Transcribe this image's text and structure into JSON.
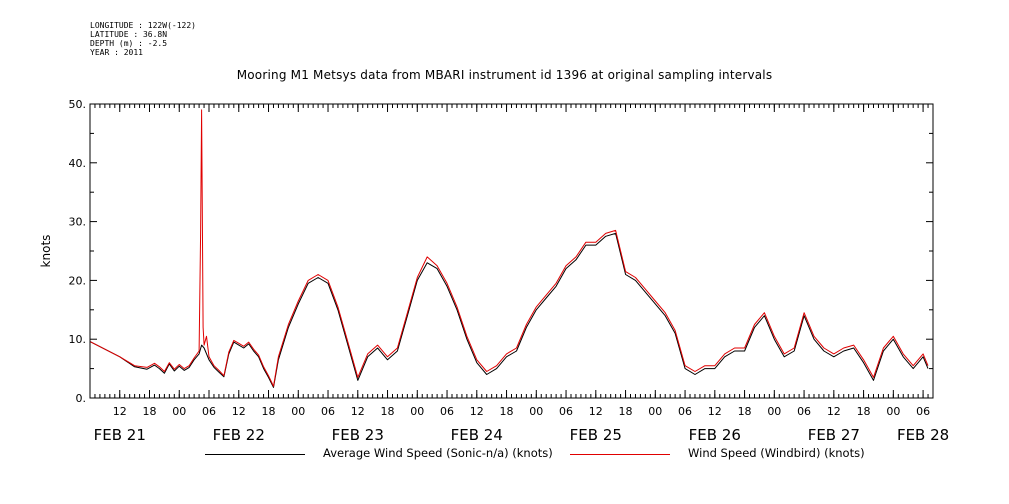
{
  "meta": {
    "longitude": "LONGITUDE : 122W(-122)",
    "latitude": "LATITUDE : 36.8N",
    "depth": "DEPTH (m) : -2.5",
    "year": "YEAR : 2011"
  },
  "chart_data": {
    "type": "line",
    "title": "Mooring M1 Metsys data from MBARI instrument id 1396 at original sampling intervals",
    "ylabel": "knots",
    "xlabel": "",
    "ylim": [
      0,
      50
    ],
    "yticks": [
      "0.",
      "10.",
      "20.",
      "30.",
      "40.",
      "50."
    ],
    "ytick_values": [
      0,
      10,
      20,
      30,
      40,
      50
    ],
    "xlim_hours": [
      6,
      174
    ],
    "hour_ticks": [
      {
        "h": 12,
        "label": "12"
      },
      {
        "h": 18,
        "label": "18"
      },
      {
        "h": 24,
        "label": "00"
      },
      {
        "h": 30,
        "label": "06"
      },
      {
        "h": 36,
        "label": "12"
      },
      {
        "h": 42,
        "label": "18"
      },
      {
        "h": 48,
        "label": "00"
      },
      {
        "h": 54,
        "label": "06"
      },
      {
        "h": 60,
        "label": "12"
      },
      {
        "h": 66,
        "label": "18"
      },
      {
        "h": 72,
        "label": "00"
      },
      {
        "h": 78,
        "label": "06"
      },
      {
        "h": 84,
        "label": "12"
      },
      {
        "h": 90,
        "label": "18"
      },
      {
        "h": 96,
        "label": "00"
      },
      {
        "h": 102,
        "label": "06"
      },
      {
        "h": 108,
        "label": "12"
      },
      {
        "h": 114,
        "label": "18"
      },
      {
        "h": 120,
        "label": "00"
      },
      {
        "h": 126,
        "label": "06"
      },
      {
        "h": 132,
        "label": "12"
      },
      {
        "h": 138,
        "label": "18"
      },
      {
        "h": 144,
        "label": "00"
      },
      {
        "h": 150,
        "label": "06"
      },
      {
        "h": 156,
        "label": "12"
      },
      {
        "h": 162,
        "label": "18"
      },
      {
        "h": 168,
        "label": "00"
      },
      {
        "h": 174,
        "label": "06"
      }
    ],
    "date_labels": [
      {
        "h": 12,
        "label": "FEB 21"
      },
      {
        "h": 36,
        "label": "FEB 22"
      },
      {
        "h": 60,
        "label": "FEB 23"
      },
      {
        "h": 84,
        "label": "FEB 24"
      },
      {
        "h": 108,
        "label": "FEB 25"
      },
      {
        "h": 132,
        "label": "FEB 26"
      },
      {
        "h": 156,
        "label": "FEB 27"
      },
      {
        "h": 174,
        "label": "FEB 28"
      }
    ],
    "series": [
      {
        "name": "Average Wind Speed (Sonic-n/a) (knots)",
        "color": "#000000",
        "x": [
          6,
          12,
          15,
          17.5,
          19,
          20,
          21,
          22,
          23,
          24,
          25,
          26,
          27,
          28,
          28.5,
          29,
          30,
          31,
          32,
          33,
          34,
          35,
          36,
          37,
          38,
          39,
          40,
          41,
          42,
          43,
          44,
          46,
          48,
          50,
          52,
          54,
          56,
          58,
          60,
          62,
          64,
          66,
          68,
          70,
          72,
          74,
          76,
          78,
          80,
          82,
          84,
          86,
          88,
          90,
          92,
          94,
          96,
          98,
          100,
          102,
          104,
          106,
          108,
          110,
          112,
          114,
          116,
          118,
          120,
          122,
          124,
          126,
          128,
          130,
          132,
          134,
          136,
          138,
          140,
          142,
          144,
          146,
          148,
          150,
          152,
          154,
          156,
          158,
          160,
          162,
          164,
          166,
          168,
          170,
          172,
          174,
          175
        ],
        "y": [
          9.6,
          7,
          5.3,
          4.9,
          5.6,
          5.0,
          4.2,
          5.8,
          4.6,
          5.4,
          4.7,
          5.2,
          6.5,
          7.5,
          9,
          8.5,
          6.5,
          5.2,
          4.4,
          3.6,
          7.5,
          9.5,
          9.0,
          8.5,
          9.2,
          8.0,
          7.0,
          5.0,
          3.5,
          1.8,
          6.5,
          12,
          16,
          19.5,
          20.5,
          19.5,
          15,
          9,
          3,
          7,
          8.5,
          6.5,
          8,
          14,
          20,
          23,
          22,
          19,
          15,
          10,
          6,
          4,
          5,
          7,
          8,
          12,
          15,
          17,
          19,
          22,
          23.5,
          26,
          26,
          27.5,
          28,
          21,
          20,
          18,
          16,
          14,
          11,
          5,
          4,
          5,
          5,
          7,
          8,
          8,
          12,
          14,
          10,
          7,
          8,
          14,
          10,
          8,
          7,
          8,
          8.5,
          6,
          3,
          8,
          10,
          7,
          5,
          7,
          5
        ]
      },
      {
        "name": "Wind Speed (Windbird) (knots)",
        "color": "#e00000",
        "x": [
          6,
          12,
          15,
          17.5,
          19,
          20,
          21,
          22,
          23,
          24,
          25,
          26,
          27,
          28,
          28.3,
          28.5,
          28.8,
          29,
          29.5,
          30,
          31,
          32,
          33,
          34,
          35,
          36,
          37,
          38,
          39,
          40,
          41,
          42,
          43,
          44,
          46,
          48,
          50,
          52,
          54,
          56,
          58,
          60,
          62,
          64,
          66,
          68,
          70,
          72,
          74,
          76,
          78,
          80,
          82,
          84,
          86,
          88,
          90,
          92,
          94,
          96,
          98,
          100,
          102,
          104,
          106,
          108,
          110,
          112,
          114,
          116,
          118,
          120,
          122,
          124,
          126,
          128,
          130,
          132,
          134,
          136,
          138,
          140,
          142,
          144,
          146,
          148,
          150,
          152,
          154,
          156,
          158,
          160,
          162,
          164,
          166,
          168,
          170,
          172,
          174,
          175
        ],
        "y": [
          9.6,
          7,
          5.5,
          5.2,
          5.9,
          5.3,
          4.5,
          6.0,
          4.9,
          5.7,
          5.0,
          5.5,
          6.8,
          8,
          28,
          49,
          12,
          9,
          10.5,
          7,
          5.5,
          4.7,
          3.8,
          7.8,
          9.8,
          9.3,
          8.8,
          9.5,
          8.3,
          7.3,
          5.3,
          3.8,
          2.0,
          7,
          12.5,
          16.5,
          20,
          21,
          20,
          15.5,
          9.5,
          3.5,
          7.5,
          9,
          7,
          8.5,
          14.5,
          20.5,
          24,
          22.5,
          19.5,
          15.5,
          10.5,
          6.5,
          4.5,
          5.5,
          7.5,
          8.5,
          12.5,
          15.5,
          17.5,
          19.5,
          22.5,
          24,
          26.5,
          26.5,
          28,
          28.5,
          21.5,
          20.5,
          18.5,
          16.5,
          14.5,
          11.5,
          5.5,
          4.5,
          5.5,
          5.5,
          7.5,
          8.5,
          8.5,
          12.5,
          14.5,
          10.5,
          7.5,
          8.5,
          14.5,
          10.5,
          8.5,
          7.5,
          8.5,
          9,
          6.5,
          3.5,
          8.5,
          10.5,
          7.5,
          5.5,
          7.5,
          5.5
        ]
      }
    ]
  }
}
